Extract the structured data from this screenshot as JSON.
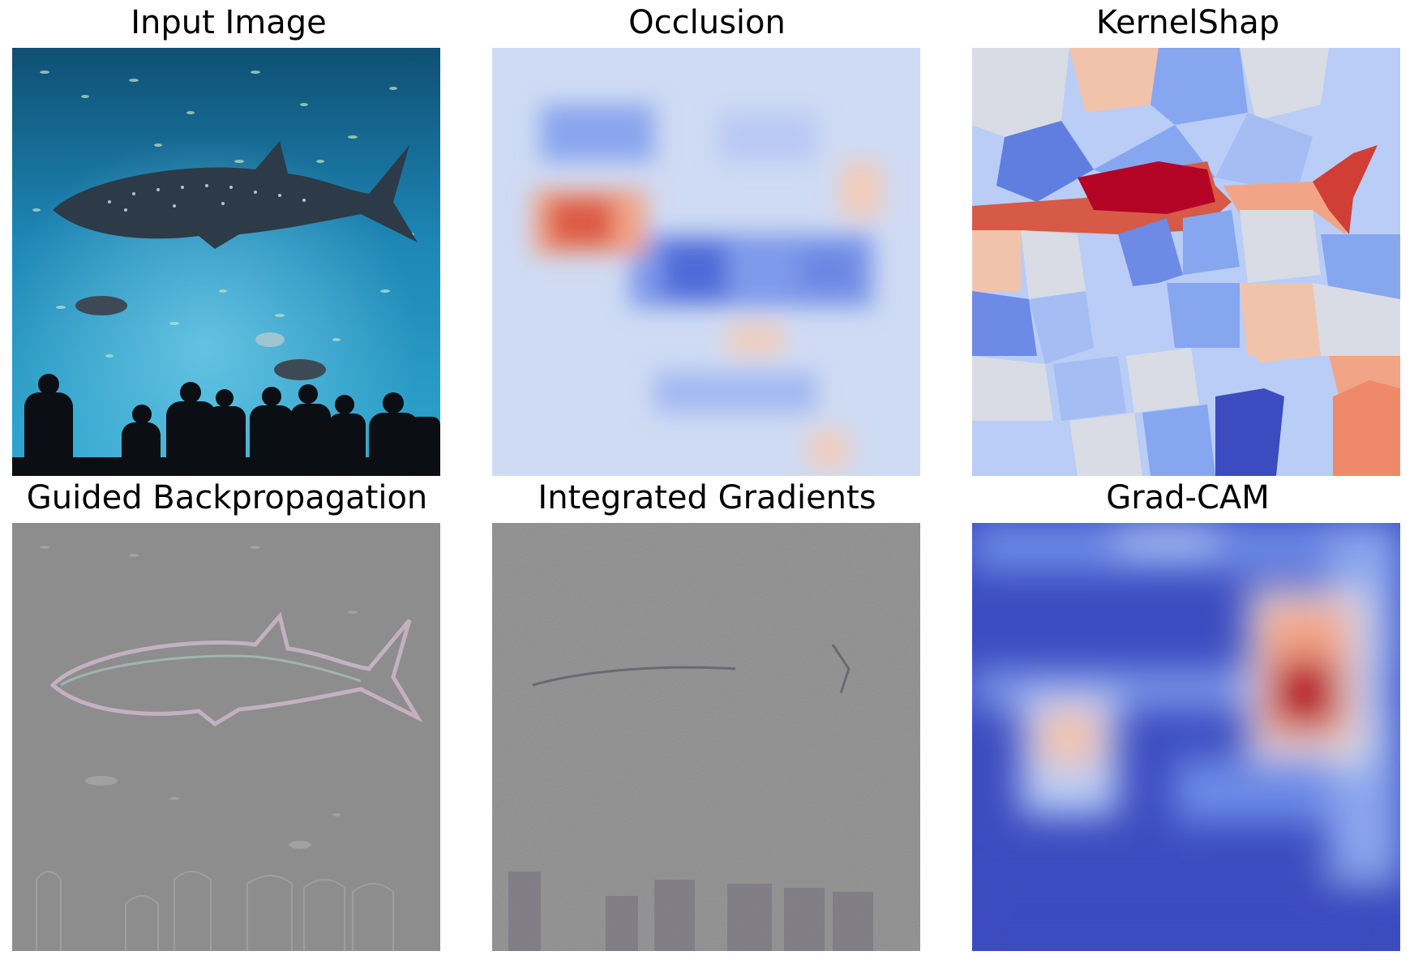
{
  "figure": {
    "panels": [
      {
        "title": "Input Image"
      },
      {
        "title": "Occlusion"
      },
      {
        "title": "KernelShap"
      },
      {
        "title": "Guided Backpropagation"
      },
      {
        "title": "Integrated Gradients"
      },
      {
        "title": "Grad-CAM"
      }
    ]
  },
  "colors": {
    "ocean_deep": "#0f5d86",
    "ocean_light": "#3aaed8",
    "map_blue": "#3b4cc0",
    "map_neutral": "#dddddd",
    "map_red": "#b40426",
    "gradient_gray": "#8c8c8c"
  }
}
